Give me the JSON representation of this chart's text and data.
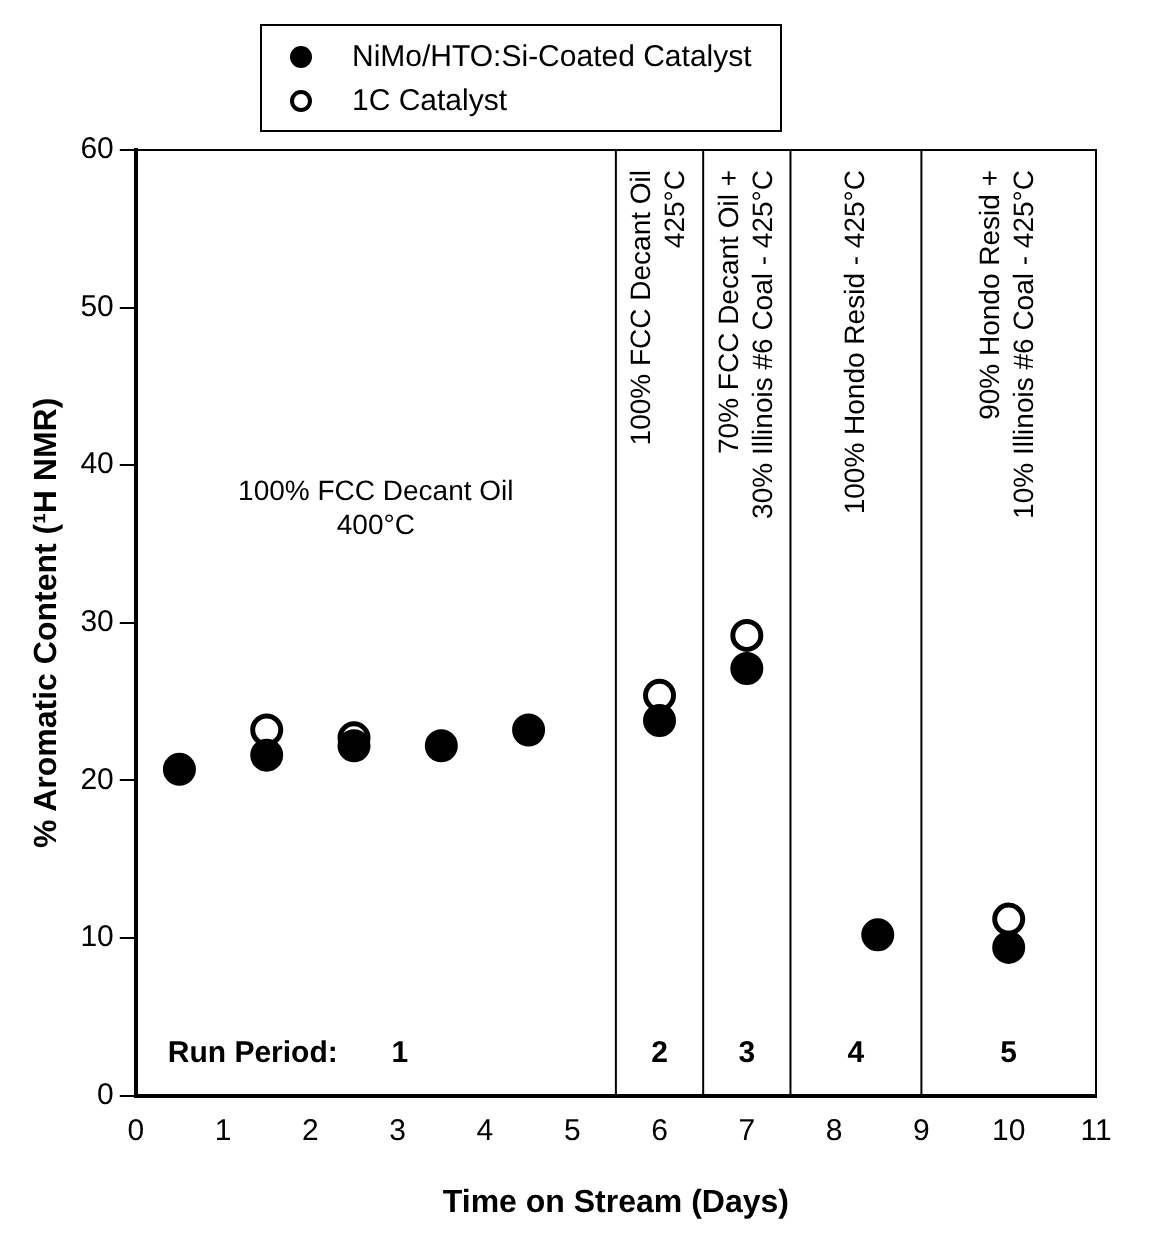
{
  "chart_data": {
    "type": "scatter",
    "xlabel": "Time on Stream (Days)",
    "ylabel": "% Aromatic Content (¹H NMR)",
    "series": [
      {
        "name": "NiMo/HTO:Si-Coated Catalyst",
        "color": "#000000",
        "x": [
          0.5,
          1.5,
          2.5,
          3.5,
          4.5,
          6,
          7,
          8.5,
          10
        ],
        "values": [
          20.7,
          21.6,
          22.2,
          22.2,
          23.2,
          23.8,
          27.1,
          10.2,
          9.4
        ]
      },
      {
        "name": "1C Catalyst",
        "color": "#ffffff",
        "x": [
          1.5,
          2.5,
          6,
          7,
          10
        ],
        "values": [
          23.2,
          22.7,
          25.4,
          29.2,
          11.2
        ]
      }
    ],
    "xlim": [
      0,
      11
    ],
    "xticks": [
      0,
      1,
      2,
      3,
      4,
      5,
      6,
      7,
      8,
      9,
      10,
      11
    ],
    "ylim": [
      0,
      60
    ],
    "yticks": [
      0,
      10,
      20,
      30,
      40,
      50,
      60
    ],
    "ref_lines": [
      {
        "axis": "x",
        "value": 5.5
      },
      {
        "axis": "x",
        "value": 6.5
      },
      {
        "axis": "x",
        "value": 7.5
      },
      {
        "axis": "x",
        "value": 9
      }
    ],
    "annotations": [
      "100% FCC Decant Oil\n400°C",
      "100% FCC Decant Oil\n425°C",
      "70% FCC Decant Oil +\n30% Illinois #6 Coal - 425°C",
      "100% Hondo Resid - 425°C",
      "90% Hondo Resid +\n10% Illinois #6 Coal - 425°C",
      "Run Period:",
      "1",
      "2",
      "3",
      "4",
      "5"
    ],
    "legend": "top",
    "marker": "circle",
    "grid": false
  }
}
